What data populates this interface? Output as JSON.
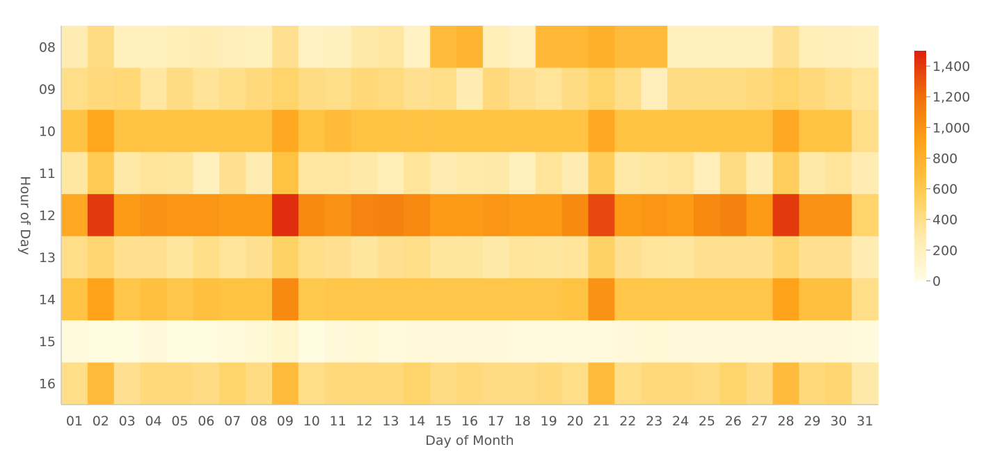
{
  "chart_data": {
    "type": "heatmap",
    "xlabel": "Day of Month",
    "ylabel": "Hour of Day",
    "x_categories": [
      "01",
      "02",
      "03",
      "04",
      "05",
      "06",
      "07",
      "08",
      "09",
      "10",
      "11",
      "12",
      "13",
      "14",
      "15",
      "16",
      "17",
      "18",
      "19",
      "20",
      "21",
      "22",
      "23",
      "24",
      "25",
      "26",
      "27",
      "28",
      "29",
      "30",
      "31"
    ],
    "y_categories": [
      "08",
      "09",
      "10",
      "11",
      "12",
      "13",
      "14",
      "15",
      "16"
    ],
    "values": [
      [
        250,
        420,
        200,
        200,
        230,
        240,
        220,
        200,
        380,
        180,
        190,
        300,
        320,
        180,
        700,
        760,
        230,
        180,
        730,
        730,
        800,
        700,
        700,
        200,
        200,
        200,
        200,
        380,
        230,
        220,
        200
      ],
      [
        400,
        450,
        470,
        320,
        420,
        360,
        400,
        450,
        500,
        420,
        400,
        460,
        440,
        380,
        400,
        250,
        450,
        380,
        350,
        420,
        500,
        400,
        220,
        420,
        430,
        430,
        450,
        500,
        450,
        400,
        350
      ],
      [
        650,
        880,
        650,
        650,
        650,
        650,
        650,
        650,
        850,
        650,
        720,
        650,
        650,
        650,
        650,
        650,
        650,
        650,
        650,
        650,
        850,
        650,
        650,
        650,
        650,
        650,
        650,
        850,
        650,
        650,
        400
      ],
      [
        320,
        580,
        300,
        350,
        330,
        200,
        380,
        250,
        650,
        320,
        320,
        300,
        230,
        350,
        250,
        280,
        300,
        200,
        350,
        250,
        550,
        300,
        320,
        350,
        220,
        420,
        250,
        550,
        300,
        350,
        250
      ],
      [
        850,
        1400,
        950,
        1000,
        980,
        980,
        950,
        950,
        1450,
        1050,
        1000,
        1080,
        1100,
        1050,
        950,
        950,
        980,
        950,
        950,
        1050,
        1350,
        950,
        980,
        950,
        1050,
        1100,
        950,
        1400,
        1000,
        1000,
        500
      ],
      [
        400,
        480,
        380,
        380,
        330,
        400,
        350,
        380,
        520,
        400,
        380,
        330,
        380,
        400,
        330,
        330,
        300,
        350,
        330,
        350,
        520,
        380,
        350,
        330,
        380,
        380,
        380,
        480,
        380,
        380,
        250
      ],
      [
        650,
        900,
        620,
        680,
        620,
        680,
        650,
        650,
        1050,
        600,
        620,
        620,
        620,
        620,
        620,
        620,
        620,
        620,
        620,
        650,
        1000,
        620,
        620,
        620,
        620,
        620,
        620,
        900,
        680,
        680,
        400
      ],
      [
        50,
        30,
        30,
        60,
        30,
        30,
        50,
        80,
        120,
        20,
        60,
        80,
        50,
        60,
        60,
        60,
        60,
        40,
        40,
        40,
        40,
        60,
        80,
        60,
        60,
        60,
        60,
        60,
        60,
        60,
        50
      ],
      [
        400,
        700,
        380,
        450,
        450,
        420,
        500,
        420,
        700,
        400,
        450,
        450,
        450,
        500,
        420,
        450,
        420,
        420,
        450,
        400,
        700,
        400,
        450,
        450,
        430,
        500,
        420,
        700,
        450,
        480,
        300
      ]
    ],
    "colorbar": {
      "min": 0,
      "max": 1500,
      "ticks": [
        0,
        200,
        400,
        600,
        800,
        1000,
        1200,
        1400
      ],
      "tick_labels": [
        "0",
        "200",
        "400",
        "600",
        "800",
        "1,000",
        "1,200",
        "1,400"
      ],
      "colors": [
        "#fffde6",
        "#ffe9a8",
        "#ffc94d",
        "#ffa31a",
        "#f0700a",
        "#dd1f0f"
      ]
    },
    "legend_position": "right",
    "grid": false
  }
}
